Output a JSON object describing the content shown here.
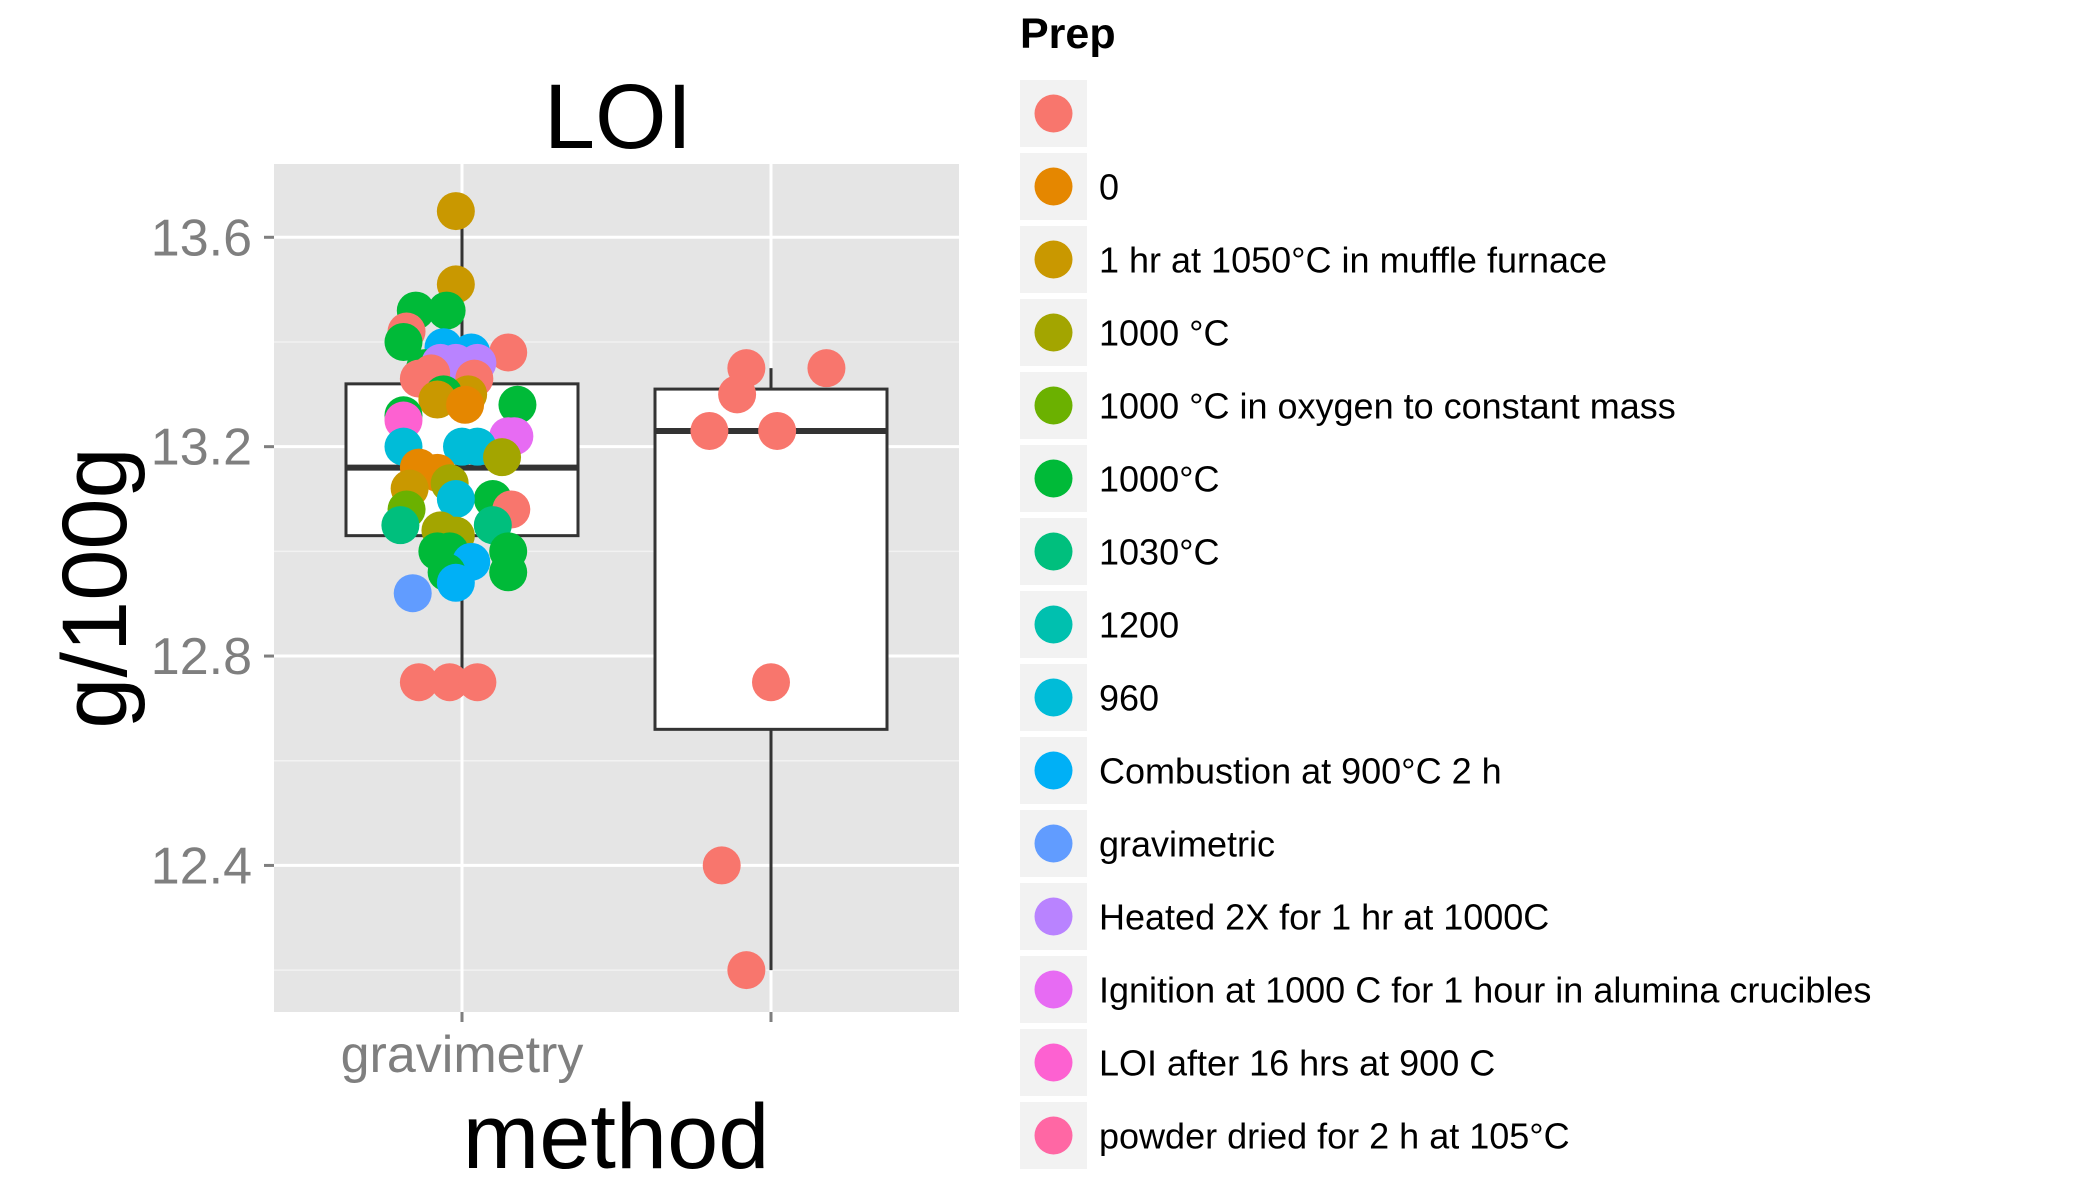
{
  "chart_data": {
    "type": "box+jitter",
    "title": "LOI",
    "xlabel": "method",
    "ylabel": "g/100g",
    "ylim": [
      12.12,
      13.74
    ],
    "yticks": [
      12.4,
      12.8,
      13.2,
      13.6
    ],
    "y_tick_labels": [
      "12.4",
      "12.8",
      "13.2",
      "13.6"
    ],
    "categories": [
      "gravimetry",
      ""
    ],
    "category_labels": [
      "gravimetry",
      ""
    ],
    "grid": true,
    "background": "#e5e5e5",
    "legend": {
      "title": "Prep",
      "placement": "right",
      "entries": [
        {
          "label": "",
          "color": "#F8766D"
        },
        {
          "label": "0",
          "color": "#E58700"
        },
        {
          "label": "1 hr at 1050°C in muffle furnace",
          "color": "#C99800"
        },
        {
          "label": "1000 °C",
          "color": "#A3A500"
        },
        {
          "label": "1000 °C in oxygen to constant mass",
          "color": "#6BB100"
        },
        {
          "label": "1000°C",
          "color": "#00BA38"
        },
        {
          "label": "1030°C",
          "color": "#00BF7D"
        },
        {
          "label": "1200",
          "color": "#00C0AF"
        },
        {
          "label": "960",
          "color": "#00BCD8"
        },
        {
          "label": "Combustion at 900°C 2 h",
          "color": "#00B0F6"
        },
        {
          "label": "gravimetric",
          "color": "#619CFF"
        },
        {
          "label": "Heated 2X for 1 hr at 1000C",
          "color": "#B983FF"
        },
        {
          "label": "Ignition at 1000 C for 1 hour in alumina crucibles",
          "color": "#E76BF3"
        },
        {
          "label": "LOI after 16 hrs at 900 C",
          "color": "#FD61D1"
        },
        {
          "label": "powder dried for 2 h at 105°C",
          "color": "#FF67A4"
        }
      ]
    },
    "boxes": [
      {
        "category": "gravimetry",
        "q1": 13.03,
        "median": 13.16,
        "q3": 13.32,
        "whisker_low": 12.75,
        "whisker_high": 13.65
      },
      {
        "category": "",
        "q1": 12.66,
        "median": 13.23,
        "q3": 13.31,
        "whisker_low": 12.2,
        "whisker_high": 13.35
      }
    ],
    "points": [
      {
        "category": "gravimetry",
        "jitter": -0.02,
        "y": 13.65,
        "prep": "1 hr at 1050°C in muffle furnace"
      },
      {
        "category": "gravimetry",
        "jitter": -0.02,
        "y": 13.51,
        "prep": "1 hr at 1050°C in muffle furnace"
      },
      {
        "category": "gravimetry",
        "jitter": -0.15,
        "y": 13.46,
        "prep": "1000°C"
      },
      {
        "category": "gravimetry",
        "jitter": -0.05,
        "y": 13.46,
        "prep": "1000°C"
      },
      {
        "category": "gravimetry",
        "jitter": -0.18,
        "y": 13.42,
        "prep": ""
      },
      {
        "category": "gravimetry",
        "jitter": -0.19,
        "y": 13.4,
        "prep": "1000°C"
      },
      {
        "category": "gravimetry",
        "jitter": 0.03,
        "y": 13.38,
        "prep": "Combustion at 900°C 2 h"
      },
      {
        "category": "gravimetry",
        "jitter": -0.06,
        "y": 13.39,
        "prep": "Combustion at 900°C 2 h"
      },
      {
        "category": "gravimetry",
        "jitter": 0.15,
        "y": 13.38,
        "prep": ""
      },
      {
        "category": "gravimetry",
        "jitter": -0.12,
        "y": 13.35,
        "prep": "1000°C"
      },
      {
        "category": "gravimetry",
        "jitter": -0.07,
        "y": 13.36,
        "prep": "Heated 2X for 1 hr at 1000C"
      },
      {
        "category": "gravimetry",
        "jitter": -0.02,
        "y": 13.36,
        "prep": "Heated 2X for 1 hr at 1000C"
      },
      {
        "category": "gravimetry",
        "jitter": 0.05,
        "y": 13.36,
        "prep": "Heated 2X for 1 hr at 1000C"
      },
      {
        "category": "gravimetry",
        "jitter": -0.14,
        "y": 13.33,
        "prep": ""
      },
      {
        "category": "gravimetry",
        "jitter": -0.1,
        "y": 13.34,
        "prep": ""
      },
      {
        "category": "gravimetry",
        "jitter": 0.04,
        "y": 13.33,
        "prep": ""
      },
      {
        "category": "gravimetry",
        "jitter": 0.02,
        "y": 13.3,
        "prep": "1 hr at 1050°C in muffle furnace"
      },
      {
        "category": "gravimetry",
        "jitter": -0.06,
        "y": 13.3,
        "prep": "1000°C"
      },
      {
        "category": "gravimetry",
        "jitter": -0.08,
        "y": 13.29,
        "prep": "1 hr at 1050°C in muffle furnace"
      },
      {
        "category": "gravimetry",
        "jitter": 0.01,
        "y": 13.28,
        "prep": "0"
      },
      {
        "category": "gravimetry",
        "jitter": 0.18,
        "y": 13.28,
        "prep": "1000°C"
      },
      {
        "category": "gravimetry",
        "jitter": -0.19,
        "y": 13.26,
        "prep": "1000°C"
      },
      {
        "category": "gravimetry",
        "jitter": -0.19,
        "y": 13.25,
        "prep": "LOI after 16 hrs at 900 C"
      },
      {
        "category": "gravimetry",
        "jitter": 0.15,
        "y": 13.22,
        "prep": "Ignition at 1000 C for 1 hour in alumina crucibles"
      },
      {
        "category": "gravimetry",
        "jitter": 0.17,
        "y": 13.22,
        "prep": "Ignition at 1000 C for 1 hour in alumina crucibles"
      },
      {
        "category": "gravimetry",
        "jitter": -0.19,
        "y": 13.2,
        "prep": "960"
      },
      {
        "category": "gravimetry",
        "jitter": 0.0,
        "y": 13.2,
        "prep": "960"
      },
      {
        "category": "gravimetry",
        "jitter": 0.05,
        "y": 13.2,
        "prep": "960"
      },
      {
        "category": "gravimetry",
        "jitter": 0.13,
        "y": 13.18,
        "prep": "1000 °C"
      },
      {
        "category": "gravimetry",
        "jitter": -0.14,
        "y": 13.16,
        "prep": "0"
      },
      {
        "category": "gravimetry",
        "jitter": -0.08,
        "y": 13.15,
        "prep": "0"
      },
      {
        "category": "gravimetry",
        "jitter": -0.17,
        "y": 13.12,
        "prep": "1 hr at 1050°C in muffle furnace"
      },
      {
        "category": "gravimetry",
        "jitter": -0.04,
        "y": 13.13,
        "prep": "1000 °C"
      },
      {
        "category": "gravimetry",
        "jitter": 0.1,
        "y": 13.1,
        "prep": "1000°C"
      },
      {
        "category": "gravimetry",
        "jitter": -0.18,
        "y": 13.08,
        "prep": "1000 °C in oxygen to constant mass"
      },
      {
        "category": "gravimetry",
        "jitter": -0.02,
        "y": 13.1,
        "prep": "960"
      },
      {
        "category": "gravimetry",
        "jitter": 0.16,
        "y": 13.08,
        "prep": ""
      },
      {
        "category": "gravimetry",
        "jitter": -0.2,
        "y": 13.05,
        "prep": "1030°C"
      },
      {
        "category": "gravimetry",
        "jitter": 0.1,
        "y": 13.05,
        "prep": "1030°C"
      },
      {
        "category": "gravimetry",
        "jitter": -0.07,
        "y": 13.04,
        "prep": "1000 °C"
      },
      {
        "category": "gravimetry",
        "jitter": -0.02,
        "y": 13.03,
        "prep": "1000 °C"
      },
      {
        "category": "gravimetry",
        "jitter": -0.08,
        "y": 13.0,
        "prep": "1000°C"
      },
      {
        "category": "gravimetry",
        "jitter": -0.04,
        "y": 13.0,
        "prep": "1000°C"
      },
      {
        "category": "gravimetry",
        "jitter": 0.15,
        "y": 13.0,
        "prep": "1000°C"
      },
      {
        "category": "gravimetry",
        "jitter": 0.03,
        "y": 12.98,
        "prep": "Combustion at 900°C 2 h"
      },
      {
        "category": "gravimetry",
        "jitter": -0.05,
        "y": 12.96,
        "prep": "1000°C"
      },
      {
        "category": "gravimetry",
        "jitter": 0.15,
        "y": 12.96,
        "prep": "1000°C"
      },
      {
        "category": "gravimetry",
        "jitter": -0.02,
        "y": 12.94,
        "prep": "Combustion at 900°C 2 h"
      },
      {
        "category": "gravimetry",
        "jitter": -0.16,
        "y": 12.92,
        "prep": "gravimetric"
      },
      {
        "category": "gravimetry",
        "jitter": -0.14,
        "y": 12.75,
        "prep": ""
      },
      {
        "category": "gravimetry",
        "jitter": -0.04,
        "y": 12.75,
        "prep": ""
      },
      {
        "category": "gravimetry",
        "jitter": 0.05,
        "y": 12.75,
        "prep": ""
      },
      {
        "category": "",
        "jitter": -0.08,
        "y": 13.35,
        "prep": ""
      },
      {
        "category": "",
        "jitter": 0.18,
        "y": 13.35,
        "prep": ""
      },
      {
        "category": "",
        "jitter": -0.11,
        "y": 13.3,
        "prep": ""
      },
      {
        "category": "",
        "jitter": -0.2,
        "y": 13.23,
        "prep": ""
      },
      {
        "category": "",
        "jitter": 0.02,
        "y": 13.23,
        "prep": ""
      },
      {
        "category": "",
        "jitter": 0.0,
        "y": 12.75,
        "prep": ""
      },
      {
        "category": "",
        "jitter": -0.16,
        "y": 12.4,
        "prep": ""
      },
      {
        "category": "",
        "jitter": -0.08,
        "y": 12.2,
        "prep": ""
      }
    ]
  }
}
